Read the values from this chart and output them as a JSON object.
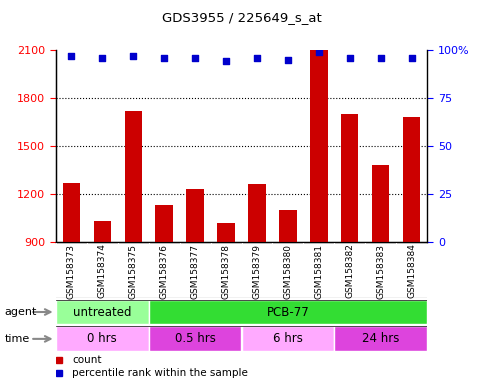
{
  "title": "GDS3955 / 225649_s_at",
  "samples": [
    "GSM158373",
    "GSM158374",
    "GSM158375",
    "GSM158376",
    "GSM158377",
    "GSM158378",
    "GSM158379",
    "GSM158380",
    "GSM158381",
    "GSM158382",
    "GSM158383",
    "GSM158384"
  ],
  "counts": [
    1270,
    1030,
    1720,
    1130,
    1230,
    1020,
    1260,
    1100,
    2100,
    1700,
    1380,
    1680
  ],
  "percentile_ranks": [
    97,
    96,
    97,
    96,
    96,
    94,
    96,
    95,
    99,
    96,
    96,
    96
  ],
  "ylim_left": [
    900,
    2100
  ],
  "ylim_right": [
    0,
    100
  ],
  "yticks_left": [
    900,
    1200,
    1500,
    1800,
    2100
  ],
  "yticks_right": [
    0,
    25,
    50,
    75,
    100
  ],
  "bar_color": "#cc0000",
  "dot_color": "#0000cc",
  "bar_width": 0.55,
  "agent_labels": [
    {
      "label": "untreated",
      "start": 0,
      "end": 3,
      "color": "#99ff99"
    },
    {
      "label": "PCB-77",
      "start": 3,
      "end": 12,
      "color": "#33dd33"
    }
  ],
  "time_colors_alt": [
    "#ffaaff",
    "#dd44dd",
    "#ffaaff",
    "#dd44dd"
  ],
  "time_labels": [
    {
      "label": "0 hrs",
      "start": 0,
      "end": 3
    },
    {
      "label": "0.5 hrs",
      "start": 3,
      "end": 6
    },
    {
      "label": "6 hrs",
      "start": 6,
      "end": 9
    },
    {
      "label": "24 hrs",
      "start": 9,
      "end": 12
    }
  ],
  "grid_color": "#000000",
  "label_bg_color": "#cccccc",
  "legend_bar_label": "count",
  "legend_dot_label": "percentile rank within the sample",
  "agent_row_label": "agent",
  "time_row_label": "time"
}
